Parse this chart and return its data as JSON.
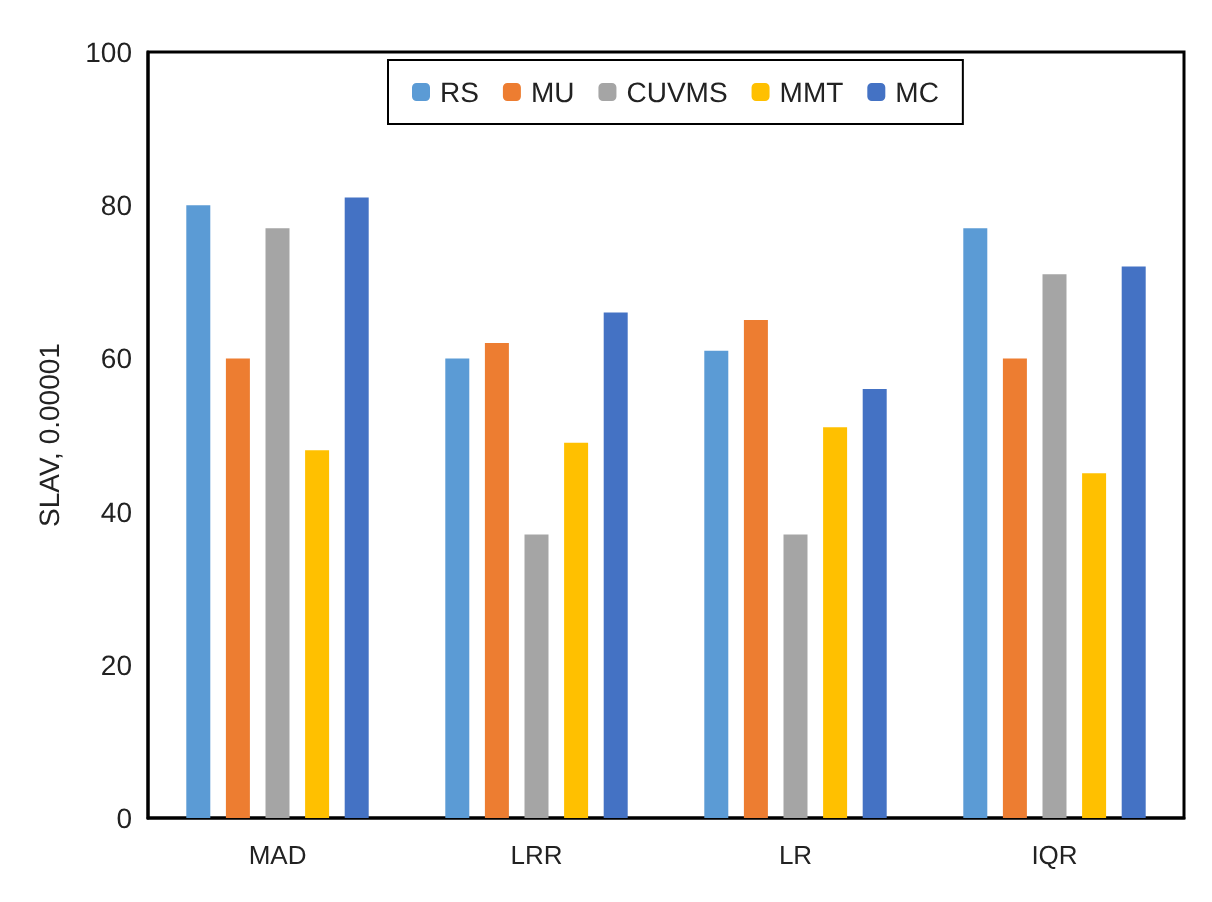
{
  "chart_data": {
    "type": "bar",
    "ylabel": "SLAV, 0.00001",
    "categories": [
      "MAD",
      "LRR",
      "LR",
      "IQR"
    ],
    "series": [
      {
        "name": "RS",
        "color": "#5b9bd5",
        "values": [
          80,
          60,
          61,
          77
        ]
      },
      {
        "name": "MU",
        "color": "#ed7d31",
        "values": [
          60,
          62,
          65,
          60
        ]
      },
      {
        "name": "CUVMS",
        "color": "#a5a5a5",
        "values": [
          77,
          37,
          37,
          71
        ]
      },
      {
        "name": "MMT",
        "color": "#ffc000",
        "values": [
          48,
          49,
          51,
          45
        ]
      },
      {
        "name": "MC",
        "color": "#4472c4",
        "values": [
          81,
          66,
          56,
          72
        ]
      }
    ],
    "ylim": [
      0,
      100
    ],
    "yticks": [
      0,
      20,
      40,
      60,
      80,
      100
    ],
    "grid": false,
    "legend": "top"
  }
}
